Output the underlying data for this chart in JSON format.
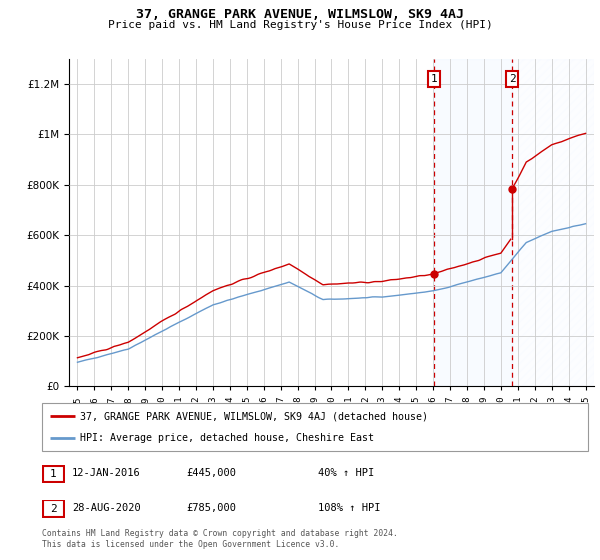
{
  "title": "37, GRANGE PARK AVENUE, WILMSLOW, SK9 4AJ",
  "subtitle": "Price paid vs. HM Land Registry's House Price Index (HPI)",
  "legend_line1": "37, GRANGE PARK AVENUE, WILMSLOW, SK9 4AJ (detached house)",
  "legend_line2": "HPI: Average price, detached house, Cheshire East",
  "footer": "Contains HM Land Registry data © Crown copyright and database right 2024.\nThis data is licensed under the Open Government Licence v3.0.",
  "annotation1_date": "12-JAN-2016",
  "annotation1_price": "£445,000",
  "annotation1_hpi": "40% ↑ HPI",
  "annotation2_date": "28-AUG-2020",
  "annotation2_price": "£785,000",
  "annotation2_hpi": "108% ↑ HPI",
  "red_color": "#cc0000",
  "blue_color": "#6699cc",
  "shaded_color": "#ddeeff",
  "grid_color": "#cccccc",
  "ylim": [
    0,
    1300000
  ],
  "yticks": [
    0,
    200000,
    400000,
    600000,
    800000,
    1000000,
    1200000
  ],
  "ytick_labels": [
    "£0",
    "£200K",
    "£400K",
    "£600K",
    "£800K",
    "£1M",
    "£1.2M"
  ],
  "xstart_year": 1995,
  "xend_year": 2025,
  "sale1_year": 2016.04,
  "sale1_price": 445000,
  "sale2_year": 2020.67,
  "sale2_price": 785000
}
